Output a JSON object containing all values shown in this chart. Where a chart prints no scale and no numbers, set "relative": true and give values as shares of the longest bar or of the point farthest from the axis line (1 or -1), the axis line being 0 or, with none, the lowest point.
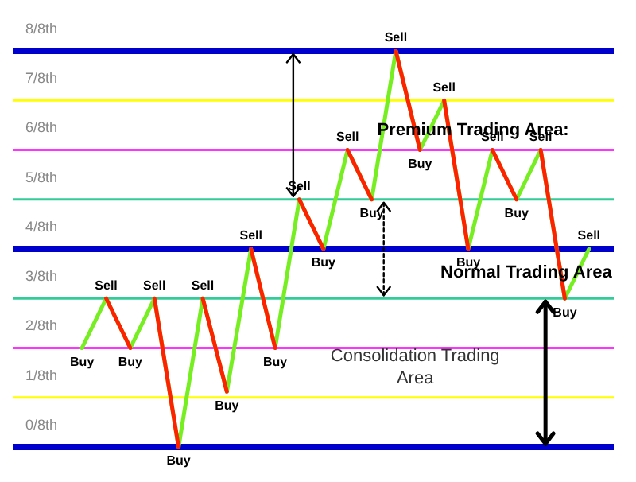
{
  "chart_data": {
    "type": "line",
    "relative": true,
    "legend": false,
    "line_style": "solid",
    "categories": [
      null,
      null,
      null,
      null,
      null,
      null,
      null,
      null,
      null,
      null,
      null,
      null,
      null,
      null,
      null,
      null,
      null,
      null,
      null,
      null,
      null,
      null
    ],
    "series": [
      {
        "color": "#77ee22",
        "values": [
          0.25,
          0.375,
          0.25,
          0.375,
          0,
          0.375,
          0.14,
          0.5,
          0.25,
          0.625,
          0.5,
          0.75,
          0.625,
          1,
          0.75,
          0.875,
          0.5,
          0.75,
          0.625,
          0.75,
          0.375,
          0.5
        ],
        "colors": [
          "#77ee22",
          "#77ee22",
          "#ff2200",
          "#77ee22",
          "#ff2200",
          "#77ee22",
          "#ff2200",
          "#77ee22",
          "#ff2200",
          "#77ee22",
          "#ff2200",
          "#77ee22",
          "#ff2200",
          "#77ee22",
          "#ff2200",
          "#77ee22",
          "#ff2200",
          "#77ee22",
          "#ff2200",
          "#77ee22",
          "#ff2200",
          "#77ee22"
        ]
      }
    ],
    "ref_lines": [
      {
        "axis": "y",
        "value": 0,
        "label": "0/8th",
        "color": "#0000cc"
      },
      {
        "axis": "y",
        "value": 0.125,
        "label": "1/8th",
        "color": "#ffff00"
      },
      {
        "axis": "y",
        "value": 0.25,
        "label": "2/8th",
        "color": "#ff33ff"
      },
      {
        "axis": "y",
        "value": 0.375,
        "label": "3/8th",
        "color": "#33cc99"
      },
      {
        "axis": "y",
        "value": 0.5,
        "label": "4/8th",
        "color": "#0000cc"
      },
      {
        "axis": "y",
        "value": 0.625,
        "label": "5/8th",
        "color": "#33cc99"
      },
      {
        "axis": "y",
        "value": 0.75,
        "label": "6/8th",
        "color": "#ff33ff"
      },
      {
        "axis": "y",
        "value": 0.875,
        "label": "7/8th",
        "color": "#ffff00"
      },
      {
        "axis": "y",
        "value": 1,
        "label": "8/8th",
        "color": "#0000cc"
      }
    ],
    "annotations": [
      {
        "text": "Buy",
        "y": 0.25
      },
      {
        "text": "Sell",
        "y": 0.375
      },
      {
        "text": "Buy",
        "y": 0.25
      },
      {
        "text": "Sell",
        "y": 0.375
      },
      {
        "text": "Buy",
        "y": 0
      },
      {
        "text": "Sell",
        "y": 0.375
      },
      {
        "text": "Buy",
        "y": 0.14
      },
      {
        "text": "Sell",
        "y": 0.5
      },
      {
        "text": "Buy",
        "y": 0.25
      },
      {
        "text": "Sell",
        "y": 0.625
      },
      {
        "text": "Buy",
        "y": 0.5
      },
      {
        "text": "Sell",
        "y": 0.75
      },
      {
        "text": "Buy",
        "y": 0.625
      },
      {
        "text": "Sell",
        "y": 1
      },
      {
        "text": "Buy",
        "y": 0.75
      },
      {
        "text": "Sell",
        "y": 0.875
      },
      {
        "text": "Buy",
        "y": 0.5
      },
      {
        "text": "Sell",
        "y": 0.75
      },
      {
        "text": "Buy",
        "y": 0.625
      },
      {
        "text": "Sell",
        "y": 0.75
      },
      {
        "text": "Buy",
        "y": 0.375
      },
      {
        "text": "Sell",
        "y": 0.5
      },
      "Premium Trading Area:",
      "Normal Trading Area",
      "Consolidation Trading Area"
    ]
  }
}
